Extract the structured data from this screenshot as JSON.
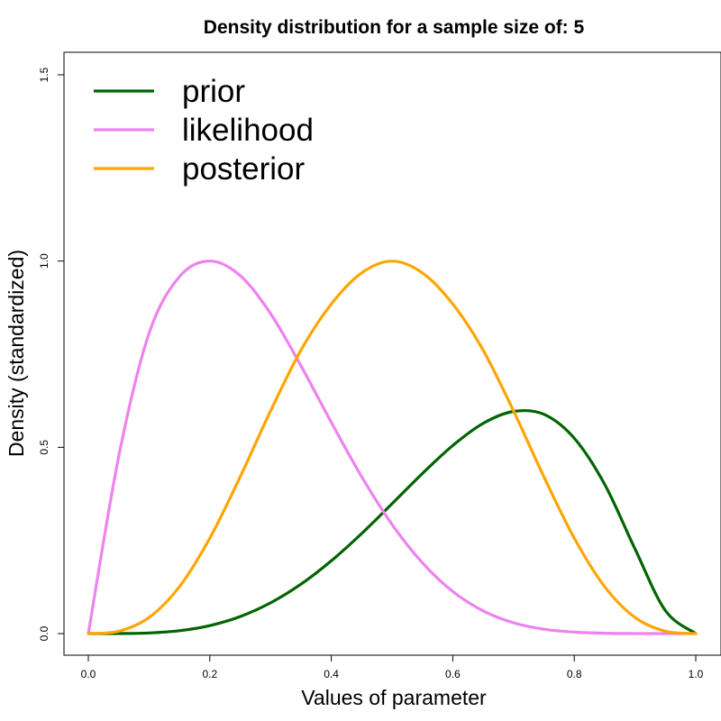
{
  "chart_data": {
    "type": "line",
    "title": "Density distribution for a sample size of: 5",
    "xlabel": "Values of parameter",
    "ylabel": "Density (standardized)",
    "xlim": [
      0,
      1
    ],
    "ylim": [
      0,
      1.5
    ],
    "x_ticks": [
      "0.0",
      "0.2",
      "0.4",
      "0.6",
      "0.8",
      "1.0"
    ],
    "y_ticks": [
      "0.0",
      "0.5",
      "1.0",
      "1.5"
    ],
    "grid": false,
    "legend_position": "top-left",
    "x": [
      0.0,
      0.05,
      0.1,
      0.15,
      0.2,
      0.25,
      0.3,
      0.35,
      0.4,
      0.45,
      0.5,
      0.55,
      0.6,
      0.65,
      0.7,
      0.75,
      0.8,
      0.85,
      0.9,
      0.95,
      1.0
    ],
    "series": [
      {
        "name": "prior",
        "color": "#006400",
        "values": [
          0.0,
          0.0001,
          0.0017,
          0.0077,
          0.0214,
          0.0457,
          0.0825,
          0.1325,
          0.1953,
          0.2686,
          0.3486,
          0.4298,
          0.5049,
          0.5644,
          0.5964,
          0.5886,
          0.5244,
          0.4007,
          0.2272,
          0.0617,
          0.0
        ]
      },
      {
        "name": "likelihood",
        "color": "#EE82EE",
        "values": [
          0.0,
          0.475,
          0.806,
          0.958,
          1.0,
          0.961,
          0.859,
          0.719,
          0.567,
          0.421,
          0.293,
          0.19,
          0.113,
          0.061,
          0.029,
          0.0117,
          0.0039,
          0.001,
          0.00015,
          1e-05,
          0.0
        ]
      },
      {
        "name": "posterior",
        "color": "#FFA500",
        "values": [
          0.0,
          0.0063,
          0.0433,
          0.126,
          0.2562,
          0.4208,
          0.5976,
          0.7608,
          0.8847,
          0.9682,
          1.0,
          0.9682,
          0.8847,
          0.7608,
          0.5976,
          0.4208,
          0.2562,
          0.126,
          0.0433,
          0.0063,
          0.0
        ]
      }
    ]
  }
}
